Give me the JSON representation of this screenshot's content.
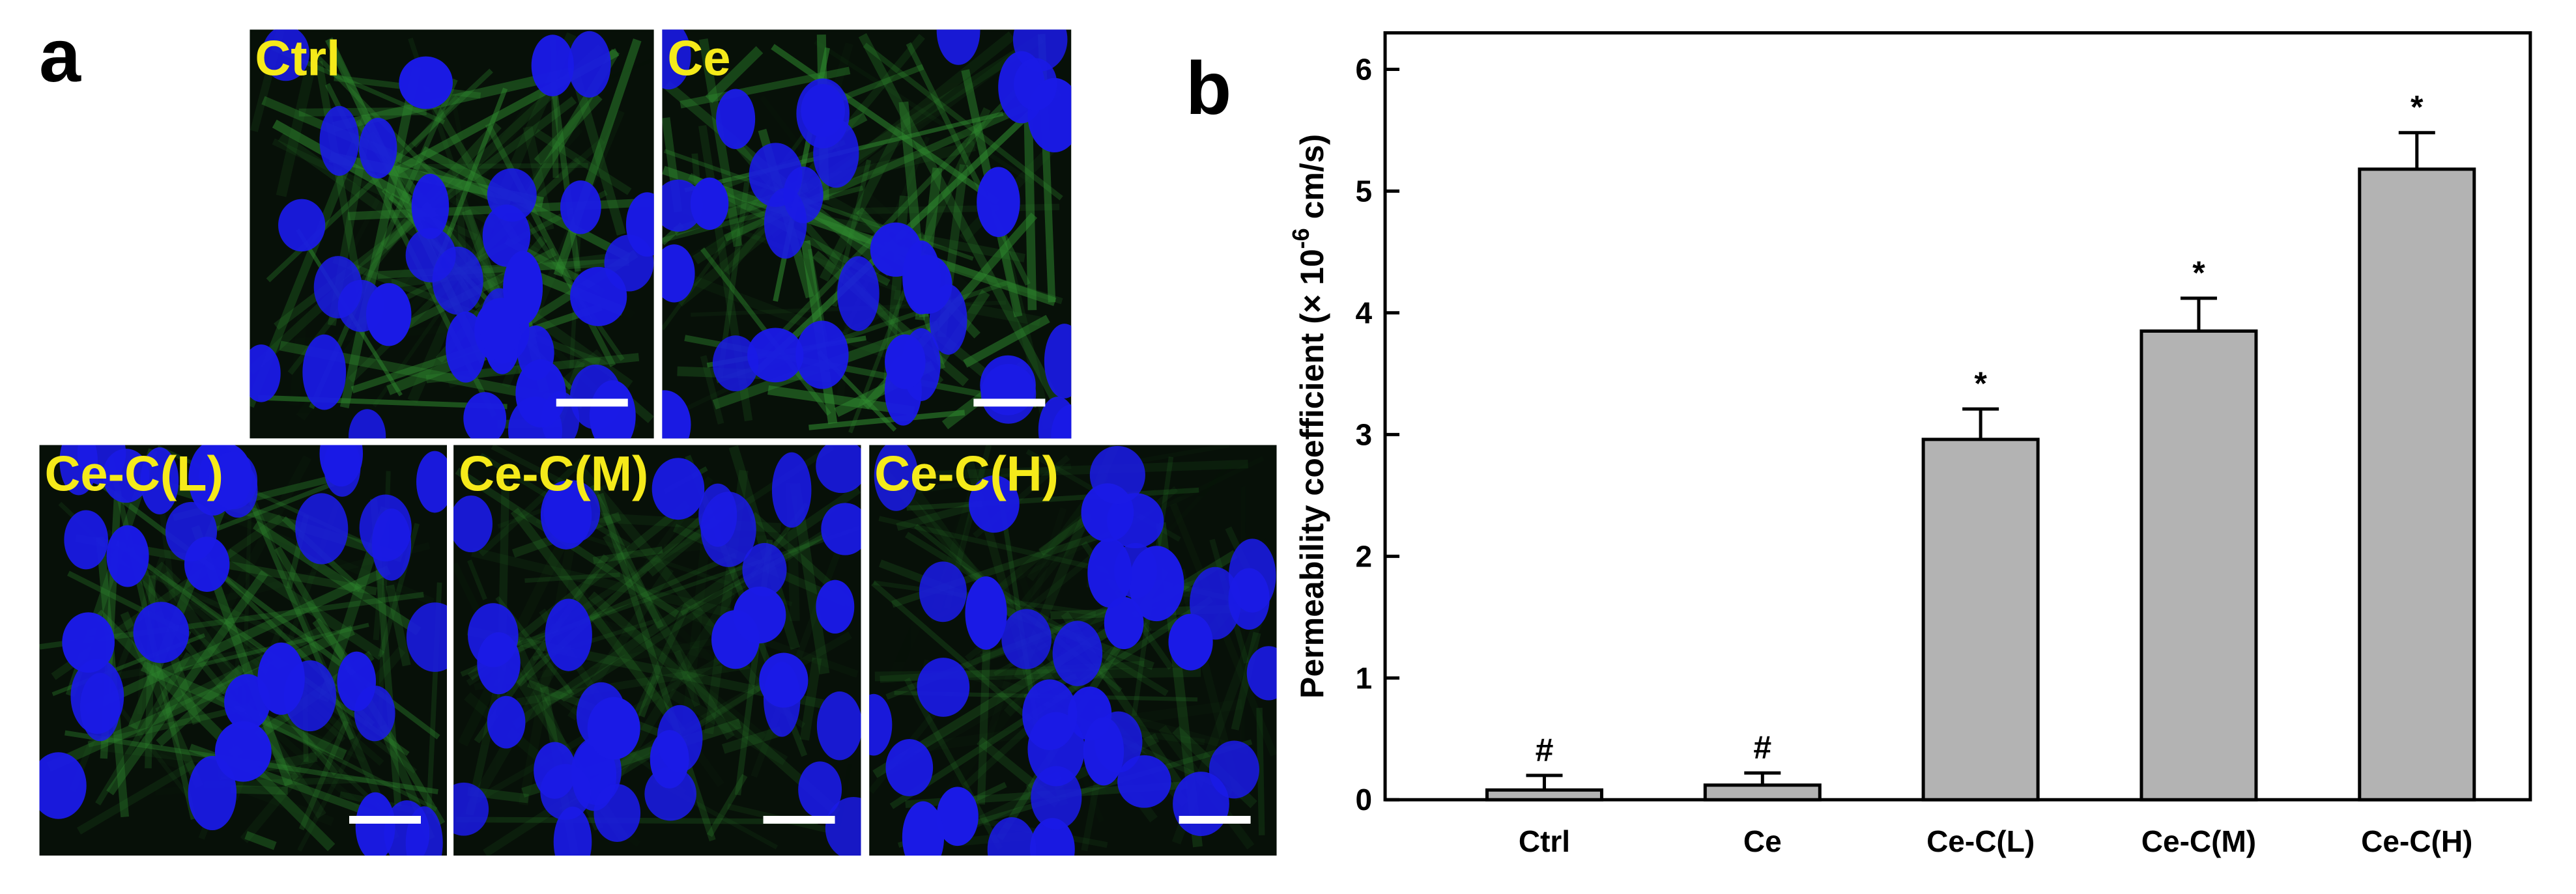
{
  "panel_a": {
    "label": "a",
    "images": [
      "Ctrl",
      "Ce",
      "Ce-C(L)",
      "Ce-C(M)",
      "Ce-C(H)"
    ]
  },
  "chart_data": {
    "type": "bar",
    "panel_label": "b",
    "ylabel": "Permeability coefficient (× 10",
    "ylabel_sup": "-6",
    "ylabel_unit": " cm/s)",
    "categories": [
      "Ctrl",
      "Ce",
      "Ce-C(L)",
      "Ce-C(M)",
      "Ce-C(H)"
    ],
    "values": [
      0.08,
      0.12,
      2.96,
      3.85,
      5.18
    ],
    "errors": [
      0.12,
      0.1,
      0.25,
      0.27,
      0.3
    ],
    "annotations": [
      "#",
      "#",
      "*",
      "*",
      "*"
    ],
    "color": "#b3b3b3",
    "ylim": [
      0,
      6.3
    ],
    "yticks": [
      0,
      1,
      2,
      3,
      4,
      5,
      6
    ]
  }
}
